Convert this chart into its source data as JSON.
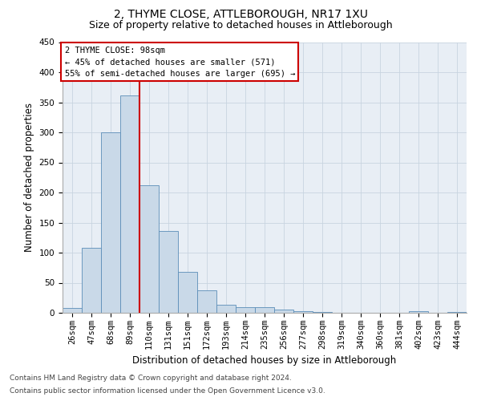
{
  "title": "2, THYME CLOSE, ATTLEBOROUGH, NR17 1XU",
  "subtitle": "Size of property relative to detached houses in Attleborough",
  "xlabel": "Distribution of detached houses by size in Attleborough",
  "ylabel": "Number of detached properties",
  "footnote1": "Contains HM Land Registry data © Crown copyright and database right 2024.",
  "footnote2": "Contains public sector information licensed under the Open Government Licence v3.0.",
  "bar_labels": [
    "26sqm",
    "47sqm",
    "68sqm",
    "89sqm",
    "110sqm",
    "131sqm",
    "151sqm",
    "172sqm",
    "193sqm",
    "214sqm",
    "235sqm",
    "256sqm",
    "277sqm",
    "298sqm",
    "319sqm",
    "340sqm",
    "360sqm",
    "381sqm",
    "402sqm",
    "423sqm",
    "444sqm"
  ],
  "bar_values": [
    8,
    108,
    300,
    362,
    212,
    136,
    68,
    38,
    14,
    10,
    9,
    6,
    3,
    2,
    0,
    0,
    0,
    0,
    3,
    0,
    2
  ],
  "bar_color": "#c9d9e8",
  "bar_edge_color": "#5b8db8",
  "grid_color": "#c8d4e0",
  "background_color": "#e8eef5",
  "annotation_box_color": "#ffffff",
  "annotation_border_color": "#cc0000",
  "vline_color": "#cc0000",
  "annotation_text_line1": "2 THYME CLOSE: 98sqm",
  "annotation_text_line2": "← 45% of detached houses are smaller (571)",
  "annotation_text_line3": "55% of semi-detached houses are larger (695) →",
  "ylim": [
    0,
    450
  ],
  "yticks": [
    0,
    50,
    100,
    150,
    200,
    250,
    300,
    350,
    400,
    450
  ],
  "title_fontsize": 10,
  "subtitle_fontsize": 9,
  "tick_fontsize": 7.5,
  "label_fontsize": 8.5,
  "annotation_fontsize": 7.5,
  "footnote_fontsize": 6.5
}
